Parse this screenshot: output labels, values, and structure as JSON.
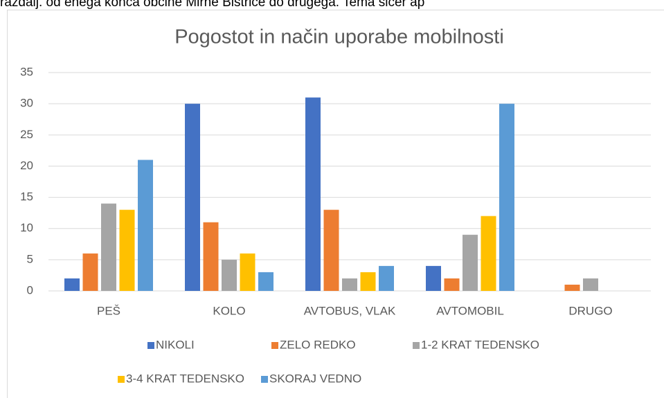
{
  "caption": "razdalj. od enega konca občine Mirne Bistrice do drugega. Tema sicer ap",
  "chart_data": {
    "type": "bar",
    "title": "Pogostot in način uporabe mobilnosti",
    "categories": [
      "PEŠ",
      "KOLO",
      "AVTOBUS, VLAK",
      "AVTOMOBIL",
      "DRUGO"
    ],
    "series": [
      {
        "name": "NIKOLI",
        "color": "#4472c4",
        "values": [
          2,
          30,
          31,
          4,
          0
        ]
      },
      {
        "name": "ZELO REDKO",
        "color": "#ed7d31",
        "values": [
          6,
          11,
          13,
          2,
          1
        ]
      },
      {
        "name": "1-2 KRAT TEDENSKO",
        "color": "#a5a5a5",
        "values": [
          14,
          5,
          2,
          9,
          2
        ]
      },
      {
        "name": "3-4 KRAT TEDENSKO",
        "color": "#ffc000",
        "values": [
          13,
          6,
          3,
          12,
          0
        ]
      },
      {
        "name": "SKORAJ VEDNO",
        "color": "#5b9bd5",
        "values": [
          21,
          3,
          4,
          30,
          0
        ]
      }
    ],
    "ylim": [
      0,
      35
    ],
    "yticks": [
      0,
      5,
      10,
      15,
      20,
      25,
      30,
      35
    ],
    "grid": true,
    "legend": "bottom"
  }
}
